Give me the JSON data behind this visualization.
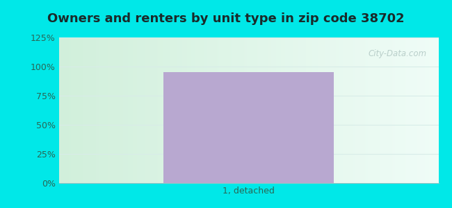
{
  "title": "Owners and renters by unit type in zip code 38702",
  "categories": [
    "1, detached"
  ],
  "values": [
    95
  ],
  "bar_color": "#b8a8d0",
  "ylim": [
    0,
    125
  ],
  "yticks": [
    0,
    25,
    50,
    75,
    100,
    125
  ],
  "ytick_labels": [
    "0%",
    "25%",
    "50%",
    "75%",
    "100%",
    "125%"
  ],
  "outer_bg": "#00e8e8",
  "title_color": "#1a2a2a",
  "title_fontsize": 13,
  "tick_fontsize": 9,
  "tick_color": "#2a6655",
  "watermark": "City-Data.com",
  "grid_color": "#d8ece8",
  "bar_width": 0.45,
  "xlim": [
    -0.5,
    0.5
  ]
}
